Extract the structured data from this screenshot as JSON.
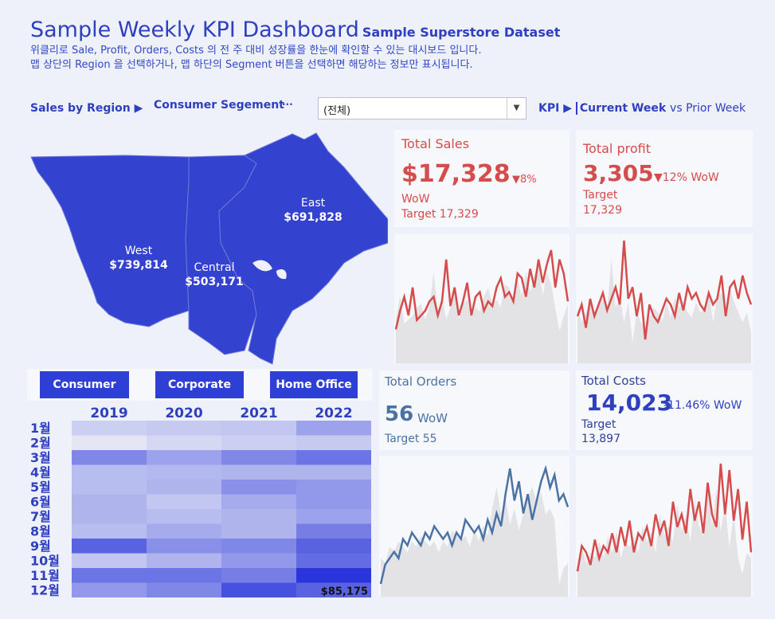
{
  "header": {
    "title": "Sample Weekly KPI Dashboard",
    "subtitle": "Sample Superstore Dataset",
    "desc_line1": "위클리로 Sale, Profit, Orders, Costs 의 전 주 대비 성장률을 한눈에 확인할 수 있는 대시보드 입니다.",
    "desc_line2": "맵 상단의 Region 을 선택하거나, 맵 하단의 Segment 버튼을 선택하면 해당하는 정보만 표시됩니다."
  },
  "controls": {
    "sales_by_region": "Sales by Region ▶",
    "consumer_segment": "Consumer Segement",
    "more_glyph": "···",
    "dropdown_value": "(전체)",
    "kpi_label": "KPI ▶",
    "current_week": "Current Week",
    "vs_prior": "vs Prior Week"
  },
  "map": {
    "regions": [
      {
        "name": "West",
        "value": "$739,814"
      },
      {
        "name": "Central",
        "value": "$503,171"
      },
      {
        "name": "East",
        "value": "$691,828"
      }
    ]
  },
  "segments": [
    "Consumer",
    "Corporate",
    "Home Office"
  ],
  "heatmap": {
    "years": [
      "2019",
      "2020",
      "2021",
      "2022"
    ],
    "months": [
      "1월",
      "2월",
      "3월",
      "4월",
      "5월",
      "6월",
      "7월",
      "8월",
      "9월",
      "10월",
      "11월",
      "12월"
    ],
    "intensity": [
      [
        0.15,
        0.18,
        0.2,
        0.4
      ],
      [
        0.02,
        0.1,
        0.15,
        0.18
      ],
      [
        0.55,
        0.4,
        0.55,
        0.65
      ],
      [
        0.25,
        0.28,
        0.3,
        0.3
      ],
      [
        0.25,
        0.3,
        0.5,
        0.45
      ],
      [
        0.3,
        0.2,
        0.35,
        0.45
      ],
      [
        0.3,
        0.25,
        0.3,
        0.4
      ],
      [
        0.25,
        0.35,
        0.3,
        0.6
      ],
      [
        0.75,
        0.5,
        0.55,
        0.75
      ],
      [
        0.2,
        0.3,
        0.45,
        0.7
      ],
      [
        0.65,
        0.65,
        0.6,
        1.0
      ],
      [
        0.45,
        0.55,
        0.85,
        0.75
      ]
    ],
    "highlight_label": "$85,175"
  },
  "kpis": {
    "sales": {
      "title": "Total Sales",
      "value": "$17,328",
      "change": "▼8%",
      "wow": "WoW",
      "target": "Target 17,329"
    },
    "profit": {
      "title": "Total profit",
      "value": "3,305",
      "change": "▼12%",
      "wow": "WoW",
      "target_label": "Target",
      "target": "17,329"
    },
    "orders": {
      "title": "Total Orders",
      "value": "56",
      "wow": "WoW",
      "target": "Target 55"
    },
    "costs": {
      "title": "Total Costs",
      "value": "14,023",
      "change": "-11.46% WoW",
      "target_label": "Target",
      "target": "13,897"
    }
  },
  "sparklines": {
    "sales": {
      "color": "#d64b4b",
      "values": [
        0.15,
        0.35,
        0.5,
        0.3,
        0.6,
        0.25,
        0.3,
        0.35,
        0.45,
        0.5,
        0.3,
        0.45,
        0.9,
        0.4,
        0.6,
        0.3,
        0.45,
        0.65,
        0.3,
        0.5,
        0.55,
        0.35,
        0.45,
        0.4,
        0.6,
        0.7,
        0.5,
        0.55,
        0.45,
        0.75,
        0.7,
        0.5,
        0.8,
        0.6,
        0.9,
        0.65,
        0.85,
        1.0,
        0.6,
        0.9,
        0.75,
        0.45
      ]
    },
    "profit": {
      "color": "#d64b4b",
      "values": [
        0.35,
        0.45,
        0.25,
        0.5,
        0.35,
        0.45,
        0.55,
        0.4,
        0.5,
        0.6,
        0.45,
        1.0,
        0.5,
        0.6,
        0.35,
        0.55,
        0.15,
        0.45,
        0.35,
        0.3,
        0.4,
        0.5,
        0.45,
        0.35,
        0.55,
        0.4,
        0.6,
        0.5,
        0.55,
        0.45,
        0.4,
        0.55,
        0.45,
        0.5,
        0.7,
        0.35,
        0.6,
        0.65,
        0.5,
        0.7,
        0.55,
        0.45
      ]
    },
    "orders": {
      "color": "#4a72a4",
      "values": [
        0.05,
        0.2,
        0.25,
        0.3,
        0.25,
        0.4,
        0.35,
        0.45,
        0.4,
        0.35,
        0.45,
        0.4,
        0.5,
        0.45,
        0.4,
        0.45,
        0.35,
        0.45,
        0.4,
        0.55,
        0.5,
        0.45,
        0.5,
        0.4,
        0.55,
        0.45,
        0.6,
        0.5,
        0.75,
        0.95,
        0.7,
        0.85,
        0.6,
        0.75,
        0.55,
        0.7,
        0.85,
        0.95,
        0.8,
        0.9,
        0.7,
        0.75,
        0.65
      ]
    },
    "costs": {
      "color": "#d64b4b",
      "values": [
        0.15,
        0.35,
        0.3,
        0.2,
        0.4,
        0.25,
        0.35,
        0.3,
        0.45,
        0.3,
        0.5,
        0.35,
        0.55,
        0.3,
        0.45,
        0.4,
        0.5,
        0.35,
        0.6,
        0.45,
        0.55,
        0.35,
        0.7,
        0.5,
        0.6,
        0.45,
        0.8,
        0.55,
        0.7,
        0.45,
        0.85,
        0.6,
        0.5,
        1.0,
        0.6,
        0.95,
        0.55,
        0.8,
        0.4,
        0.7,
        0.3
      ]
    }
  },
  "colors": {
    "accent": "#2e3fd6",
    "heading": "#2e3fbf",
    "red": "#d64b4b",
    "steel": "#4a72a4"
  }
}
